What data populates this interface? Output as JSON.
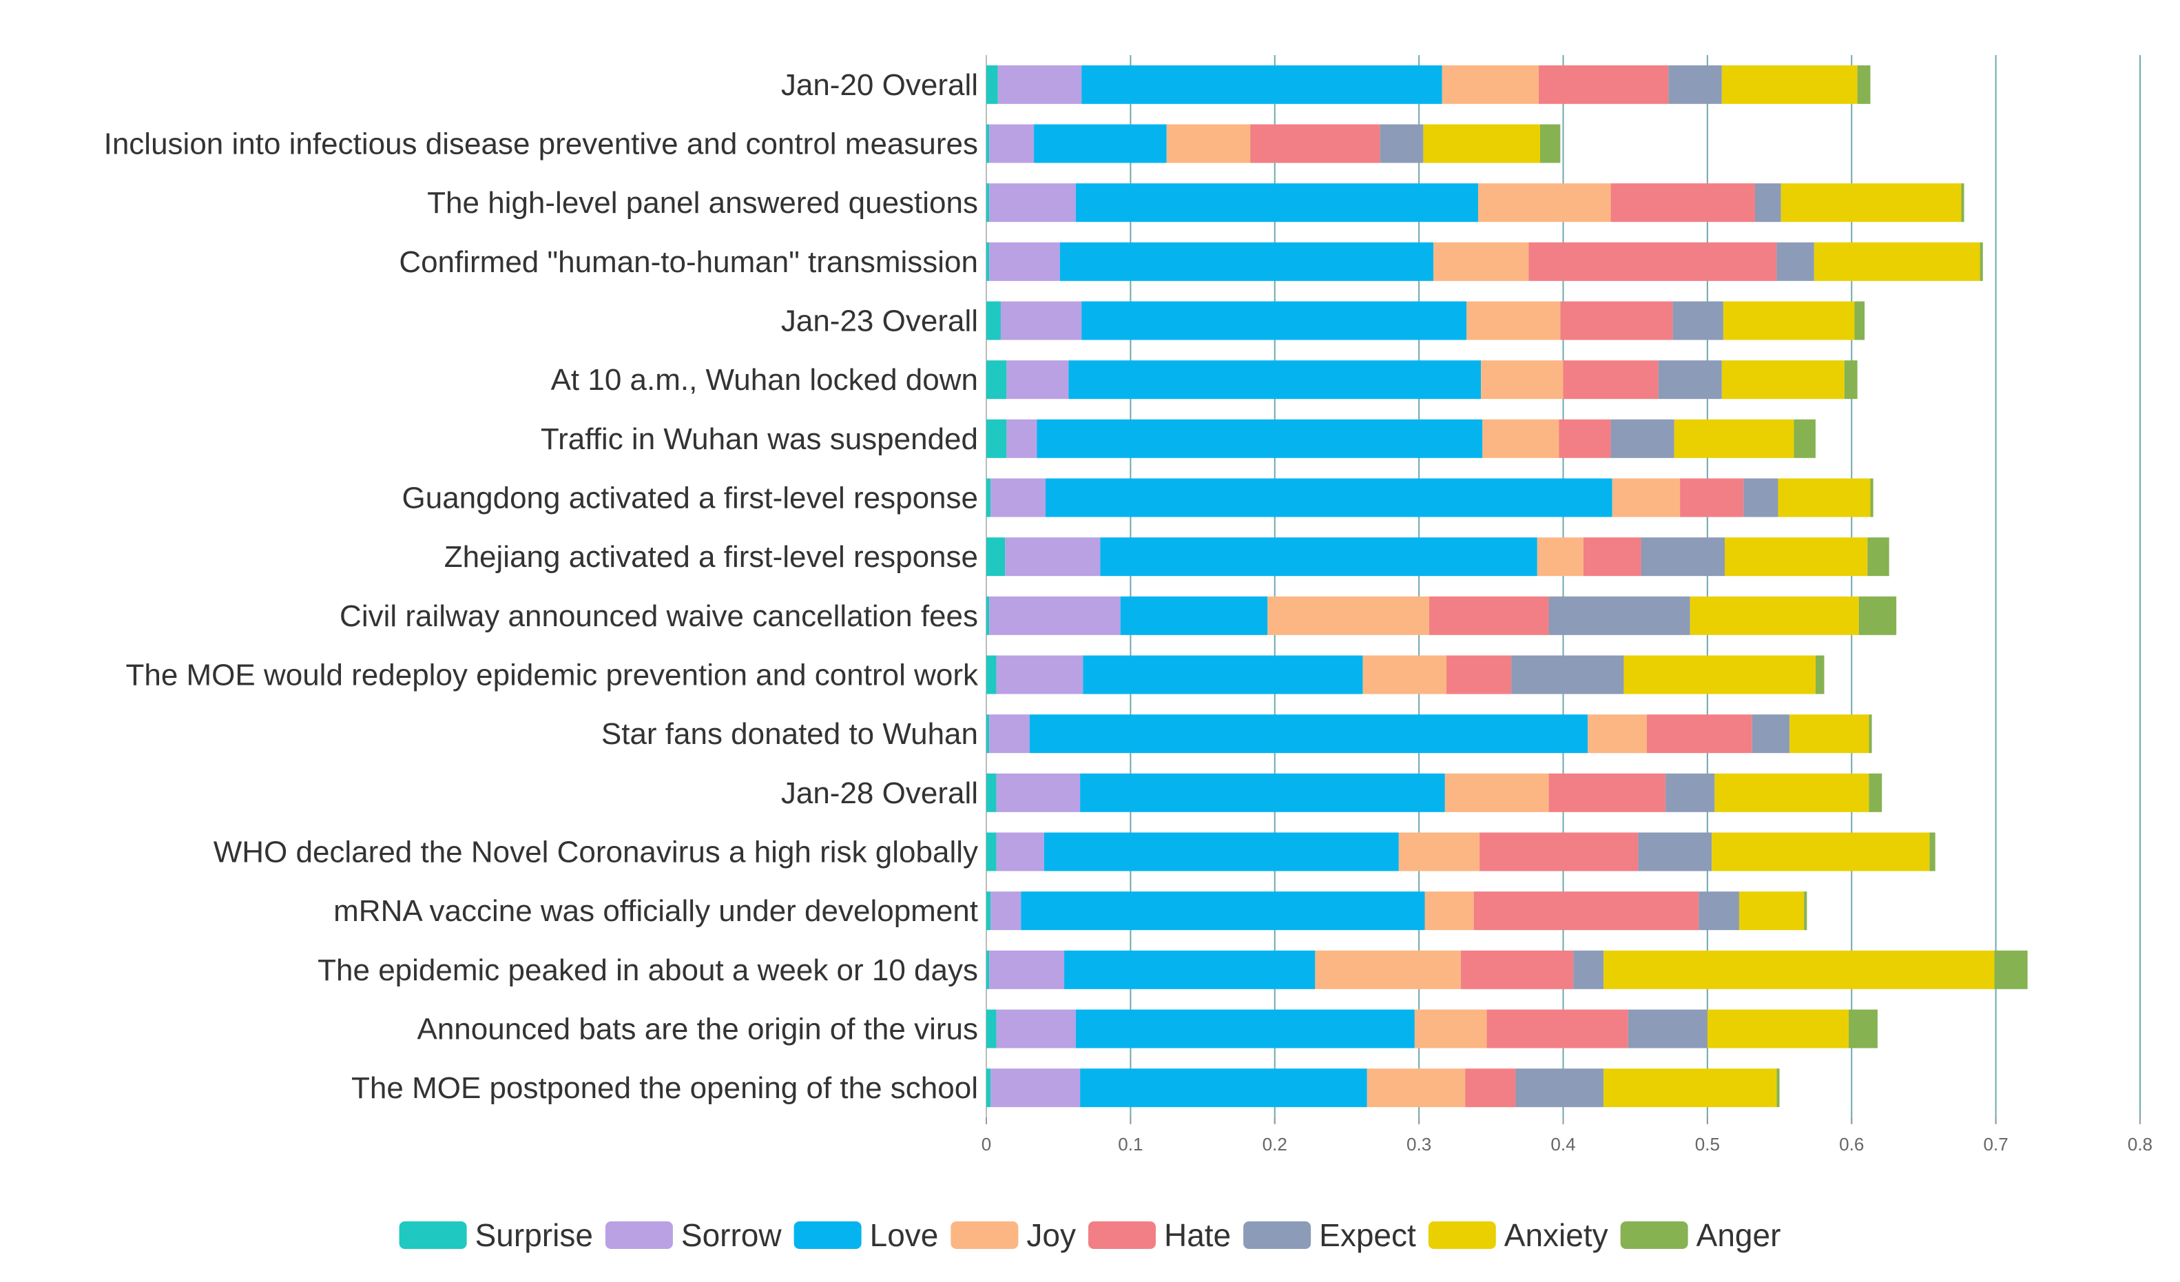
{
  "chart_data": {
    "type": "bar",
    "orientation": "horizontal",
    "stacked": true,
    "title": "",
    "xlabel": "",
    "ylabel": "",
    "xlim": [
      0,
      0.8
    ],
    "x_ticks": [
      "0",
      "0.1",
      "0.2",
      "0.3",
      "0.4",
      "0.5",
      "0.6",
      "0.7",
      "0.8"
    ],
    "grid": true,
    "legend_position": "bottom",
    "categories": [
      "Jan-20 Overall",
      "Inclusion into infectious disease preventive and control measures",
      "The high-level panel answered questions",
      "Confirmed \"human-to-human\" transmission",
      "Jan-23 Overall",
      "At 10 a.m., Wuhan locked down",
      "Traffic in Wuhan was suspended",
      "Guangdong activated a first-level response",
      "Zhejiang activated a first-level response",
      "Civil railway announced waive cancellation fees",
      "The MOE would redeploy epidemic prevention and control work",
      "Star fans donated to Wuhan",
      "Jan-28 Overall",
      "WHO declared the Novel Coronavirus a high risk globally",
      "mRNA vaccine was officially under development",
      "The epidemic peaked in about a week or 10 days",
      "Announced bats are the origin of the virus",
      "The MOE  postponed the opening of the school"
    ],
    "series": [
      {
        "name": "Surprise",
        "color": "#1fc8c0",
        "values": [
          0.008,
          0.002,
          0.002,
          0.002,
          0.01,
          0.014,
          0.014,
          0.003,
          0.013,
          0.002,
          0.007,
          0.002,
          0.007,
          0.007,
          0.003,
          0.002,
          0.007,
          0.003
        ]
      },
      {
        "name": "Sorrow",
        "color": "#b9a1e3",
        "values": [
          0.058,
          0.031,
          0.06,
          0.049,
          0.056,
          0.043,
          0.021,
          0.038,
          0.066,
          0.091,
          0.06,
          0.028,
          0.058,
          0.033,
          0.021,
          0.052,
          0.055,
          0.062
        ]
      },
      {
        "name": "Love",
        "color": "#05b4ef",
        "values": [
          0.25,
          0.092,
          0.279,
          0.259,
          0.267,
          0.286,
          0.309,
          0.393,
          0.303,
          0.102,
          0.194,
          0.387,
          0.253,
          0.246,
          0.28,
          0.174,
          0.235,
          0.199
        ]
      },
      {
        "name": "Joy",
        "color": "#fcb683",
        "values": [
          0.067,
          0.058,
          0.092,
          0.066,
          0.065,
          0.057,
          0.053,
          0.047,
          0.032,
          0.112,
          0.058,
          0.041,
          0.072,
          0.056,
          0.034,
          0.101,
          0.05,
          0.068
        ]
      },
      {
        "name": "Hate",
        "color": "#f27f85",
        "values": [
          0.09,
          0.09,
          0.1,
          0.172,
          0.078,
          0.066,
          0.036,
          0.044,
          0.04,
          0.083,
          0.045,
          0.073,
          0.081,
          0.11,
          0.156,
          0.078,
          0.098,
          0.035
        ]
      },
      {
        "name": "Expect",
        "color": "#8c9bb7",
        "values": [
          0.037,
          0.03,
          0.018,
          0.026,
          0.035,
          0.044,
          0.044,
          0.024,
          0.058,
          0.098,
          0.078,
          0.026,
          0.034,
          0.051,
          0.028,
          0.021,
          0.055,
          0.061
        ]
      },
      {
        "name": "Anxiety",
        "color": "#ead000",
        "values": [
          0.094,
          0.081,
          0.125,
          0.115,
          0.091,
          0.085,
          0.083,
          0.064,
          0.099,
          0.117,
          0.133,
          0.055,
          0.107,
          0.151,
          0.045,
          0.271,
          0.098,
          0.12
        ]
      },
      {
        "name": "Anger",
        "color": "#86b251",
        "values": [
          0.009,
          0.014,
          0.002,
          0.002,
          0.007,
          0.009,
          0.015,
          0.002,
          0.015,
          0.026,
          0.006,
          0.002,
          0.009,
          0.004,
          0.002,
          0.023,
          0.02,
          0.002
        ]
      }
    ]
  }
}
